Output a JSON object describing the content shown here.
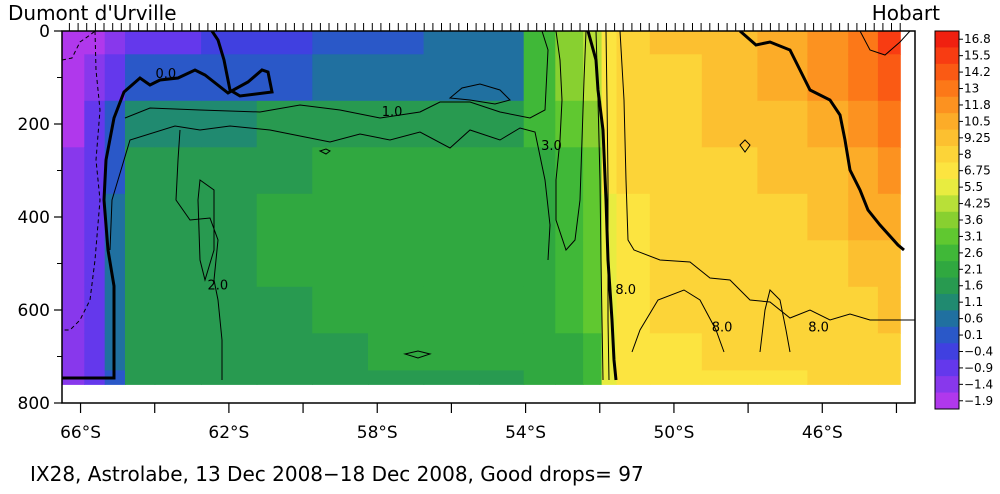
{
  "chart_data": {
    "type": "heatmap",
    "title": "IX28, Astrolabe, 13 Dec 2008−18 Dec 2008, Good drops= 97",
    "left_station": "Dumont d'Urville",
    "right_station": "Hobart",
    "x_axis": {
      "min": 66.5,
      "max": 43.5,
      "unit": "°S",
      "ticks": [
        66,
        64,
        62,
        60,
        58,
        56,
        54,
        52,
        50,
        48,
        46,
        44
      ],
      "tick_labels": [
        {
          "value": 66,
          "text": "66°S"
        },
        {
          "value": 62,
          "text": "62°S"
        },
        {
          "value": 58,
          "text": "58°S"
        },
        {
          "value": 54,
          "text": "54°S"
        },
        {
          "value": 50,
          "text": "50°S"
        },
        {
          "value": 46,
          "text": "46°S"
        }
      ]
    },
    "y_axis": {
      "min": 0,
      "max": 800,
      "reversed": true,
      "tick_labels": [
        0,
        200,
        400,
        600,
        800
      ],
      "minor_ticks": [
        100,
        300,
        500,
        700
      ]
    },
    "colorbar": {
      "labels": [
        "16.8",
        "15.5",
        "14.2",
        "13",
        "11.8",
        "10.5",
        "9.25",
        "8",
        "6.75",
        "5.5",
        "4.25",
        "3.6",
        "3.1",
        "2.6",
        "2.1",
        "1.6",
        "1.1",
        "0.6",
        "0.1",
        "−0.4",
        "−0.9",
        "−1.4",
        "−1.9"
      ],
      "colors": [
        "#f02010",
        "#f83c12",
        "#fa5a14",
        "#fc7818",
        "#fc9220",
        "#fcac28",
        "#fcc030",
        "#fcd438",
        "#fce440",
        "#e8ec40",
        "#b8e038",
        "#88d030",
        "#60c830",
        "#40b838",
        "#30a840",
        "#289a50",
        "#208a70",
        "#2070a0",
        "#2a58c8",
        "#4040e0",
        "#6438ec",
        "#8838ec",
        "#b038ec"
      ]
    },
    "contour_labels": [
      {
        "text": "0.0",
        "lat": 63.7,
        "depth": 90
      },
      {
        "text": "1.0",
        "lat": 57.6,
        "depth": 172
      },
      {
        "text": "3.0",
        "lat": 53.3,
        "depth": 245
      },
      {
        "text": "2.0",
        "lat": 62.3,
        "depth": 545
      },
      {
        "text": "8.0",
        "lat": 51.3,
        "depth": 555
      },
      {
        "text": "8.0",
        "lat": 48.7,
        "depth": 635
      },
      {
        "text": "8.0",
        "lat": 46.1,
        "depth": 635
      }
    ],
    "profile_columns": [
      {
        "lat": 66.2,
        "temps": [
          -1.6,
          -1.6,
          -1.5,
          -1.3,
          -1.2,
          -1.2,
          -1.2,
          -1.2,
          -1.2
        ]
      },
      {
        "lat": 65.6,
        "temps": [
          -1.5,
          -1.4,
          -0.9,
          -0.6,
          -0.5,
          -0.5,
          -0.5,
          -0.5,
          -0.6
        ]
      },
      {
        "lat": 65.1,
        "temps": [
          -1.2,
          -0.6,
          0.2,
          0.5,
          0.6,
          0.6,
          0.6,
          0.6,
          0.5
        ]
      },
      {
        "lat": 64.5,
        "temps": [
          -0.9,
          0.4,
          1.3,
          1.6,
          1.7,
          1.8,
          1.8,
          1.7,
          1.6
        ]
      },
      {
        "lat": 63.5,
        "temps": [
          -0.5,
          0.5,
          1.4,
          1.8,
          1.9,
          2.0,
          2.0,
          1.9,
          1.8
        ]
      },
      {
        "lat": 62.0,
        "temps": [
          -0.2,
          0.4,
          1.4,
          1.9,
          2.0,
          2.0,
          2.0,
          2.0,
          1.9
        ]
      },
      {
        "lat": 60.5,
        "temps": [
          0.0,
          0.4,
          1.6,
          2.0,
          2.1,
          2.1,
          2.0,
          2.0,
          1.9
        ]
      },
      {
        "lat": 59.0,
        "temps": [
          0.2,
          0.7,
          1.9,
          2.1,
          2.2,
          2.1,
          2.1,
          2.0,
          2.0
        ]
      },
      {
        "lat": 57.5,
        "temps": [
          0.4,
          0.7,
          1.9,
          2.1,
          2.2,
          2.1,
          2.1,
          2.1,
          2.0
        ]
      },
      {
        "lat": 56.0,
        "temps": [
          0.6,
          0.8,
          2.0,
          2.2,
          2.2,
          2.2,
          2.1,
          2.1,
          2.0
        ]
      },
      {
        "lat": 54.5,
        "temps": [
          1.0,
          1.0,
          2.0,
          2.2,
          2.2,
          2.2,
          2.1,
          2.1,
          2.0
        ]
      },
      {
        "lat": 53.6,
        "temps": [
          3.0,
          2.8,
          2.6,
          2.5,
          2.4,
          2.3,
          2.3,
          2.2,
          2.1
        ]
      },
      {
        "lat": 52.8,
        "temps": [
          4.0,
          3.6,
          3.2,
          2.9,
          2.7,
          2.6,
          2.6,
          2.5,
          2.4
        ]
      },
      {
        "lat": 52.1,
        "temps": [
          5.0,
          4.5,
          3.8,
          3.5,
          3.3,
          3.2,
          3.1,
          3.0,
          3.0
        ]
      },
      {
        "lat": 51.8,
        "temps": [
          7.4,
          7.2,
          7.0,
          6.8,
          6.7,
          6.6,
          6.5,
          6.4,
          6.3
        ]
      },
      {
        "lat": 51.3,
        "temps": [
          8.6,
          8.4,
          8.2,
          8.0,
          7.9,
          7.8,
          7.7,
          7.6,
          7.5
        ]
      },
      {
        "lat": 50.0,
        "temps": [
          9.4,
          9.2,
          8.9,
          8.6,
          8.4,
          8.2,
          8.0,
          7.8,
          7.6
        ]
      },
      {
        "lat": 48.5,
        "temps": [
          10.2,
          9.9,
          9.5,
          9.1,
          8.8,
          8.4,
          8.2,
          8.0,
          7.8
        ]
      },
      {
        "lat": 47.0,
        "temps": [
          11.0,
          10.5,
          10.0,
          9.5,
          9.1,
          8.7,
          8.4,
          8.1,
          7.9
        ]
      },
      {
        "lat": 45.8,
        "temps": [
          12.5,
          11.8,
          11.0,
          10.2,
          9.7,
          9.2,
          8.7,
          8.3,
          8.0
        ]
      },
      {
        "lat": 44.8,
        "temps": [
          14.0,
          13.2,
          12.2,
          11.3,
          10.5,
          9.8,
          9.2,
          8.6,
          8.2
        ]
      },
      {
        "lat": 44.2,
        "temps": [
          15.5,
          14.3,
          13.0,
          11.8,
          10.9,
          10.1,
          9.4,
          8.8,
          8.3
        ]
      }
    ],
    "profile_depths": [
      0,
      100,
      200,
      300,
      400,
      500,
      600,
      700,
      760
    ],
    "drop_count": 97,
    "grid": false,
    "legend": "colorbar right"
  }
}
